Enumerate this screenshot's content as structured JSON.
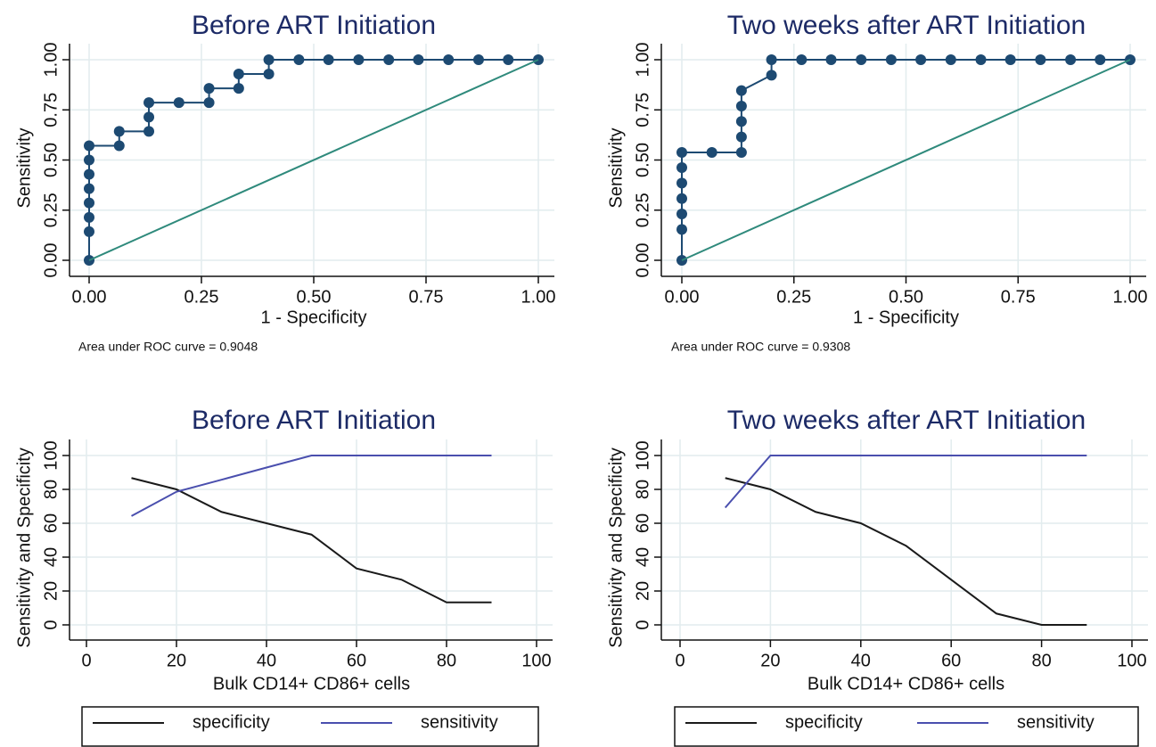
{
  "chart_data": [
    {
      "type": "line",
      "title": "Before ART Initiation",
      "xlabel": "1 - Specificity",
      "ylabel": "Sensitivity",
      "annotation": "Area under ROC curve = 0.9048",
      "markers": true,
      "grid": true,
      "xlim": [
        0,
        1
      ],
      "ylim": [
        0,
        1
      ],
      "xticks": [
        {
          "value": 0,
          "label": "0.00"
        },
        {
          "value": 0.25,
          "label": "0.25"
        },
        {
          "value": 0.5,
          "label": "0.50"
        },
        {
          "value": 0.75,
          "label": "0.75"
        },
        {
          "value": 1,
          "label": "1.00"
        }
      ],
      "yticks": [
        {
          "value": 0,
          "label": "0.00"
        },
        {
          "value": 0.25,
          "label": "0.25"
        },
        {
          "value": 0.5,
          "label": "0.50"
        },
        {
          "value": 0.75,
          "label": "0.75"
        },
        {
          "value": 1,
          "label": "1.00"
        }
      ],
      "series": [
        {
          "color": "#1d4a72",
          "x": [
            0,
            0,
            0,
            0,
            0,
            0,
            0,
            0,
            0.067,
            0.067,
            0.133,
            0.133,
            0.133,
            0.2,
            0.267,
            0.267,
            0.333,
            0.333,
            0.4,
            0.4,
            0.467,
            0.533,
            0.6,
            0.667,
            0.733,
            0.8,
            0.867,
            0.933,
            1
          ],
          "values": [
            0,
            0.143,
            0.214,
            0.286,
            0.357,
            0.429,
            0.5,
            0.571,
            0.571,
            0.643,
            0.643,
            0.714,
            0.786,
            0.786,
            0.786,
            0.857,
            0.857,
            0.929,
            0.929,
            1,
            1,
            1,
            1,
            1,
            1,
            1,
            1,
            1,
            1
          ]
        },
        {
          "color": "#2f8a7c",
          "x": [
            0,
            1
          ],
          "values": [
            0,
            1
          ]
        }
      ]
    },
    {
      "type": "line",
      "title": "Two weeks after ART Initiation",
      "xlabel": "1 - Specificity",
      "ylabel": "Sensitivity",
      "annotation": "Area under ROC curve = 0.9308",
      "markers": true,
      "grid": true,
      "xlim": [
        0,
        1
      ],
      "ylim": [
        0,
        1
      ],
      "xticks": [
        {
          "value": 0,
          "label": "0.00"
        },
        {
          "value": 0.25,
          "label": "0.25"
        },
        {
          "value": 0.5,
          "label": "0.50"
        },
        {
          "value": 0.75,
          "label": "0.75"
        },
        {
          "value": 1,
          "label": "1.00"
        }
      ],
      "yticks": [
        {
          "value": 0,
          "label": "0.00"
        },
        {
          "value": 0.25,
          "label": "0.25"
        },
        {
          "value": 0.5,
          "label": "0.50"
        },
        {
          "value": 0.75,
          "label": "0.75"
        },
        {
          "value": 1,
          "label": "1.00"
        }
      ],
      "series": [
        {
          "color": "#1d4a72",
          "x": [
            0,
            0,
            0,
            0,
            0,
            0,
            0,
            0.067,
            0.133,
            0.133,
            0.133,
            0.133,
            0.133,
            0.2,
            0.2,
            0.267,
            0.333,
            0.4,
            0.467,
            0.533,
            0.6,
            0.667,
            0.733,
            0.8,
            0.867,
            0.933,
            1
          ],
          "values": [
            0,
            0.154,
            0.231,
            0.308,
            0.385,
            0.462,
            0.538,
            0.538,
            0.538,
            0.615,
            0.692,
            0.769,
            0.846,
            0.923,
            1,
            1,
            1,
            1,
            1,
            1,
            1,
            1,
            1,
            1,
            1,
            1,
            1
          ]
        },
        {
          "color": "#2f8a7c",
          "x": [
            0,
            1
          ],
          "values": [
            0,
            1
          ]
        }
      ]
    },
    {
      "type": "line",
      "title": "Before ART Initiation",
      "xlabel": "Bulk CD14+ CD86+ cells",
      "ylabel": "Sensitivity and Specificity",
      "markers": false,
      "grid": true,
      "legend": "bottom",
      "xlim": [
        0,
        100
      ],
      "ylim": [
        0,
        100
      ],
      "xticks": [
        0,
        20,
        40,
        60,
        80,
        100
      ],
      "yticks": [
        0,
        20,
        40,
        60,
        80,
        100
      ],
      "series": [
        {
          "name": "specificity",
          "color": "#1a1a1a",
          "x": [
            10,
            20,
            30,
            40,
            50,
            60,
            70,
            80,
            90
          ],
          "values": [
            86.7,
            80,
            66.7,
            60,
            53.3,
            33.3,
            26.7,
            13.3,
            13.3
          ]
        },
        {
          "name": "sensitivity",
          "color": "#4a4fae",
          "x": [
            10,
            20,
            30,
            40,
            50,
            60,
            70,
            80,
            90
          ],
          "values": [
            64.3,
            78.6,
            85.7,
            92.9,
            100,
            100,
            100,
            100,
            100
          ]
        }
      ]
    },
    {
      "type": "line",
      "title": "Two weeks after ART Initiation",
      "xlabel": "Bulk CD14+ CD86+ cells",
      "ylabel": "Sensitivity and Specificity",
      "markers": false,
      "grid": true,
      "legend": "bottom",
      "xlim": [
        0,
        100
      ],
      "ylim": [
        0,
        100
      ],
      "xticks": [
        0,
        20,
        40,
        60,
        80,
        100
      ],
      "yticks": [
        0,
        20,
        40,
        60,
        80,
        100
      ],
      "series": [
        {
          "name": "specificity",
          "color": "#1a1a1a",
          "x": [
            10,
            20,
            30,
            40,
            50,
            60,
            70,
            80,
            90
          ],
          "values": [
            86.7,
            80,
            66.7,
            60,
            46.7,
            26.7,
            6.7,
            0,
            0
          ]
        },
        {
          "name": "sensitivity",
          "color": "#4a4fae",
          "x": [
            10,
            20,
            30,
            40,
            50,
            60,
            70,
            80,
            90
          ],
          "values": [
            69.2,
            100,
            100,
            100,
            100,
            100,
            100,
            100,
            100
          ]
        }
      ]
    }
  ]
}
